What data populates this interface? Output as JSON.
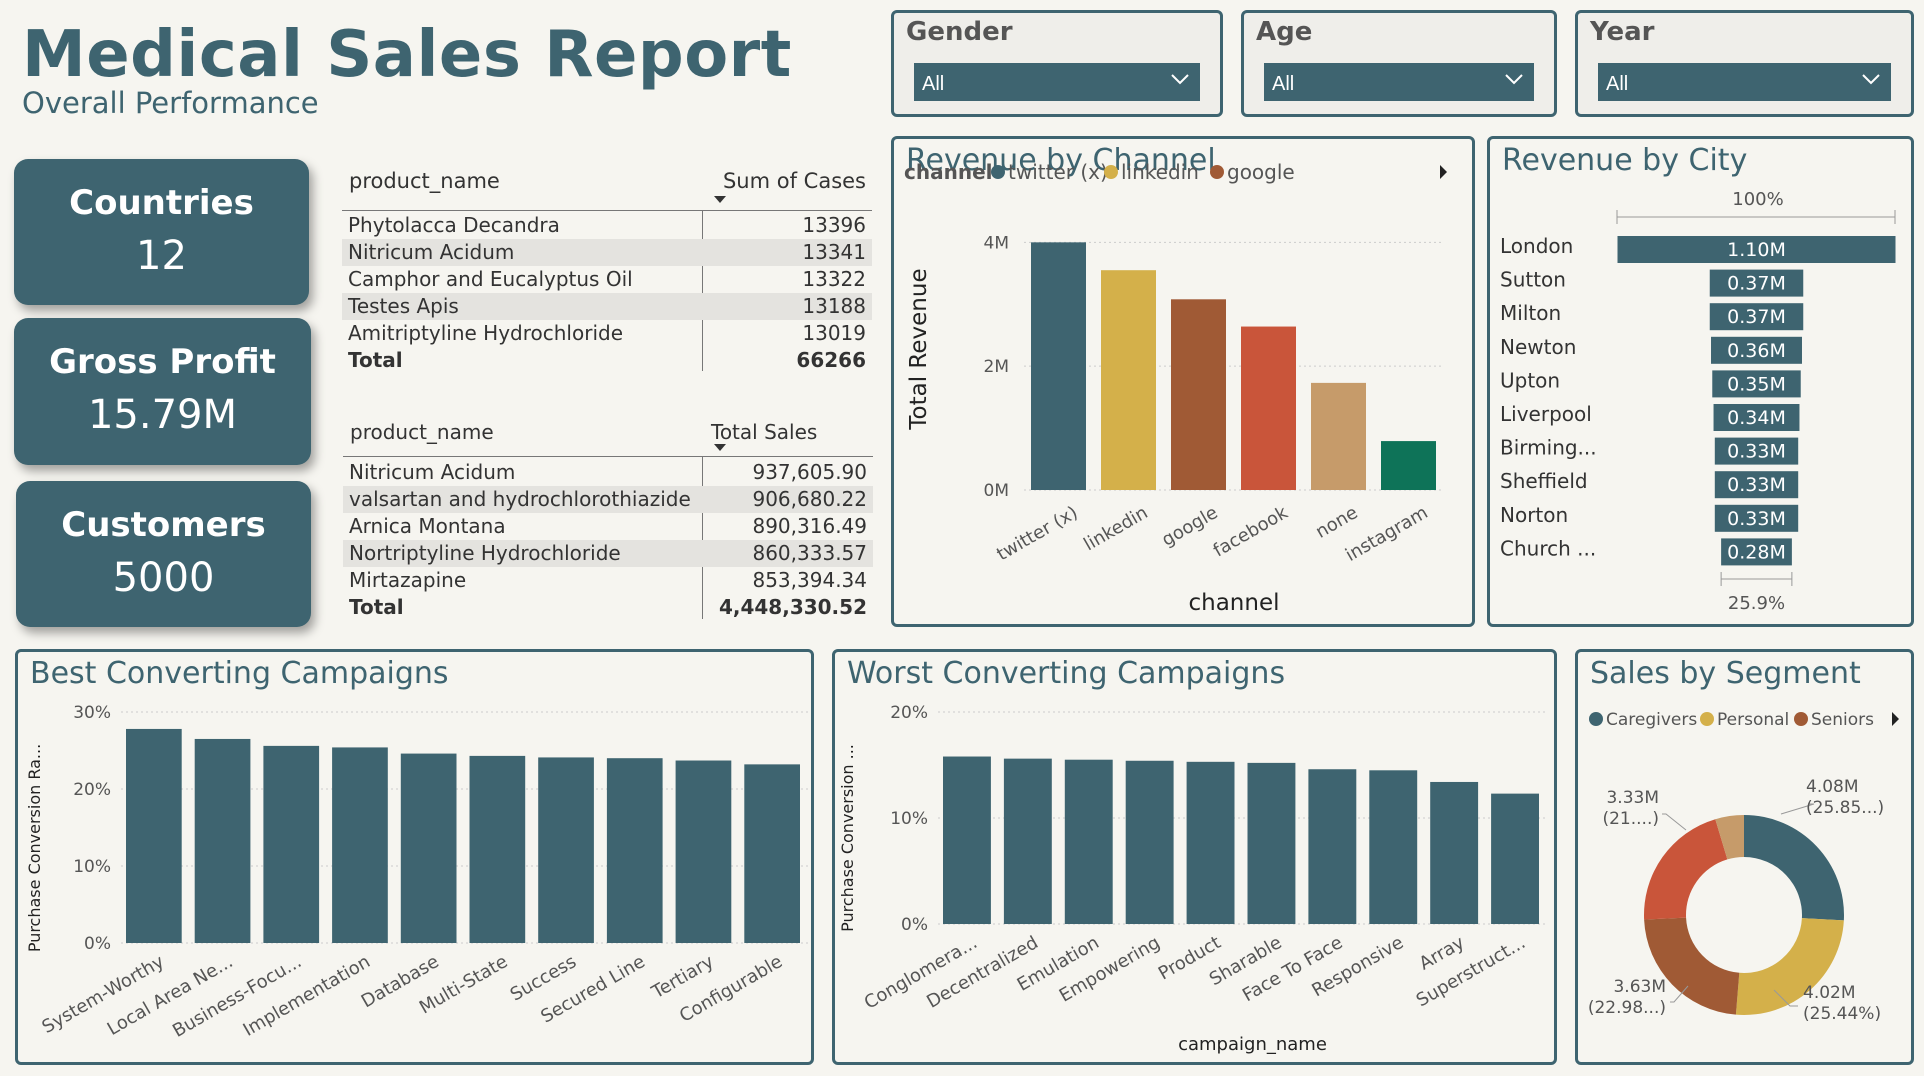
{
  "header": {
    "title": "Medical Sales Report",
    "subtitle": "Overall Performance"
  },
  "slicers": [
    {
      "label": "Gender",
      "value": "All"
    },
    {
      "label": "Age",
      "value": "All"
    },
    {
      "label": "Year",
      "value": "All"
    }
  ],
  "kpis": [
    {
      "label": "Countries",
      "value": "12"
    },
    {
      "label": "Gross Profit",
      "value": "15.79M"
    },
    {
      "label": "Customers",
      "value": "5000"
    }
  ],
  "table_cases": {
    "col1": "product_name",
    "col2": "Sum of Cases",
    "rows": [
      {
        "name": "Phytolacca Decandra",
        "value": "13396"
      },
      {
        "name": "Nitricum Acidum",
        "value": "13341"
      },
      {
        "name": "Camphor and Eucalyptus Oil",
        "value": "13322"
      },
      {
        "name": "Testes Apis",
        "value": "13188"
      },
      {
        "name": "Amitriptyline Hydrochloride",
        "value": "13019"
      }
    ],
    "total_label": "Total",
    "total_value": "66266"
  },
  "table_sales": {
    "col1": "product_name",
    "col2": "Total Sales",
    "rows": [
      {
        "name": "Nitricum Acidum",
        "value": "937,605.90"
      },
      {
        "name": "valsartan and hydrochlorothiazide",
        "value": "906,680.22"
      },
      {
        "name": "Arnica Montana",
        "value": "890,316.49"
      },
      {
        "name": "Nortriptyline Hydrochloride",
        "value": "860,333.57"
      },
      {
        "name": "Mirtazapine",
        "value": "853,394.34"
      }
    ],
    "total_label": "Total",
    "total_value": "4,448,330.52"
  },
  "chart_data": [
    {
      "id": "channel",
      "type": "bar",
      "title": "Revenue by Channel",
      "legend_title": "channel",
      "legend": [
        {
          "name": "twitter (x)",
          "color": "#3e6470"
        },
        {
          "name": "linkedin",
          "color": "#d4b04a"
        },
        {
          "name": "google",
          "color": "#a05a35"
        }
      ],
      "xlabel": "channel",
      "ylabel": "Total Revenue",
      "categories": [
        "twitter (x)",
        "linkedin",
        "google",
        "facebook",
        "none",
        "instagram"
      ],
      "values": [
        4.0,
        3.55,
        3.08,
        2.64,
        1.73,
        0.79
      ],
      "colors": [
        "#3e6470",
        "#d4b04a",
        "#a05a35",
        "#c9553a",
        "#c69b6a",
        "#0e7358"
      ],
      "yticks": [
        "0M",
        "2M",
        "4M"
      ],
      "ylim": [
        0,
        4.7
      ],
      "grid": true
    },
    {
      "id": "city",
      "type": "bar",
      "orientation": "horizontal",
      "title": "Revenue by City",
      "top_label": "100%",
      "bottom_label": "25.9%",
      "categories": [
        "London",
        "Sutton",
        "Milton",
        "Newton",
        "Upton",
        "Liverpool",
        "Birming...",
        "Sheffield",
        "Norton",
        "Church ..."
      ],
      "values": [
        1.1,
        0.37,
        0.37,
        0.36,
        0.35,
        0.34,
        0.33,
        0.33,
        0.33,
        0.28
      ],
      "labels": [
        "1.10M",
        "0.37M",
        "0.37M",
        "0.36M",
        "0.35M",
        "0.34M",
        "0.33M",
        "0.33M",
        "0.33M",
        "0.28M"
      ]
    },
    {
      "id": "best",
      "type": "bar",
      "title": "Best Converting Campaigns",
      "ylabel": "Purchase Conversion Ra...",
      "categories": [
        "System-Worthy",
        "Local Area Ne...",
        "Business-Focu...",
        "Implementation",
        "Database",
        "Multi-State",
        "Success",
        "Secured Line",
        "Tertiary",
        "Configurable"
      ],
      "values": [
        27.8,
        26.5,
        25.6,
        25.4,
        24.6,
        24.3,
        24.1,
        24.0,
        23.7,
        23.2
      ],
      "yticks": [
        "0%",
        "10%",
        "20%",
        "30%"
      ],
      "ylim": [
        0,
        30
      ],
      "grid": true
    },
    {
      "id": "worst",
      "type": "bar",
      "title": "Worst Converting Campaigns",
      "ylabel": "Purchase Conversion ...",
      "xlabel": "campaign_name",
      "categories": [
        "Conglomera...",
        "Decentralized",
        "Emulation",
        "Empowering",
        "Product",
        "Sharable",
        "Face To Face",
        "Responsive",
        "Array",
        "Superstruct..."
      ],
      "values": [
        15.8,
        15.6,
        15.5,
        15.4,
        15.3,
        15.2,
        14.6,
        14.5,
        13.4,
        12.3
      ],
      "yticks": [
        "0%",
        "10%",
        "20%"
      ],
      "ylim": [
        0,
        20
      ],
      "grid": true
    },
    {
      "id": "segment",
      "type": "pie",
      "title": "Sales by Segment",
      "legend": [
        {
          "name": "Caregivers",
          "color": "#3e6470"
        },
        {
          "name": "Personal",
          "color": "#d4b04a"
        },
        {
          "name": "Seniors",
          "color": "#a05a35"
        }
      ],
      "slices": [
        {
          "value": 25.85,
          "color": "#3e6470",
          "label": "4.08M",
          "sublabel": "(25.85...)"
        },
        {
          "value": 25.44,
          "color": "#d4b04a",
          "label": "4.02M",
          "sublabel": "(25.44%)"
        },
        {
          "value": 22.98,
          "color": "#a05a35",
          "label": "3.63M",
          "sublabel": "(22.98...)"
        },
        {
          "value": 21.1,
          "color": "#c9553a",
          "label": "3.33M",
          "sublabel": "(21....)"
        },
        {
          "value": 4.63,
          "color": "#c69b6a"
        }
      ]
    }
  ]
}
